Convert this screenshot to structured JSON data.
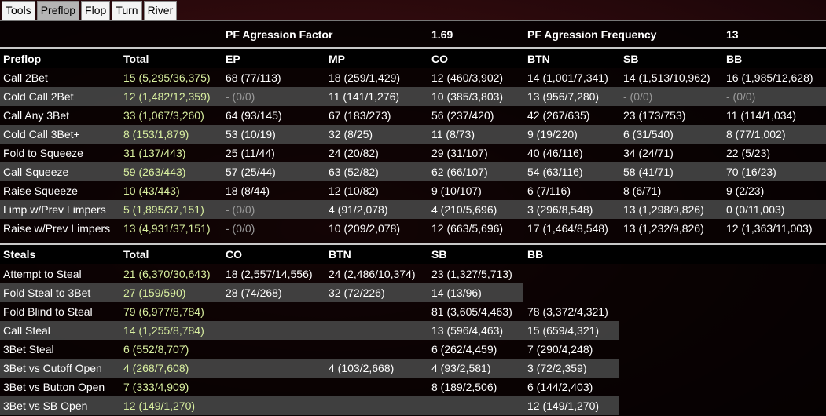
{
  "tabs": [
    {
      "label": "Tools",
      "active": false
    },
    {
      "label": "Preflop",
      "active": true
    },
    {
      "label": "Flop",
      "active": false
    },
    {
      "label": "Turn",
      "active": false
    },
    {
      "label": "River",
      "active": false
    }
  ],
  "summary": {
    "af_label": "PF Agression Factor",
    "af_value": "1.69",
    "afq_label": "PF Agression Frequency",
    "afq_value": "13"
  },
  "preflop": {
    "headers": [
      "Preflop",
      "Total",
      "EP",
      "MP",
      "CO",
      "BTN",
      "SB",
      "BB"
    ],
    "rows": [
      [
        "Call 2Bet",
        "15 (5,295/36,375)",
        "68 (77/113)",
        "18 (259/1,429)",
        "12 (460/3,902)",
        "14 (1,001/7,341)",
        "14 (1,513/10,962)",
        "16 (1,985/12,628)"
      ],
      [
        "Cold Call 2Bet",
        "12 (1,482/12,359)",
        "- (0/0)",
        "11 (141/1,276)",
        "10 (385/3,803)",
        "13 (956/7,280)",
        "- (0/0)",
        "- (0/0)"
      ],
      [
        "Call Any 3Bet",
        "33 (1,067/3,260)",
        "64 (93/145)",
        "67 (183/273)",
        "56 (237/420)",
        "42 (267/635)",
        "23 (173/753)",
        "11 (114/1,034)"
      ],
      [
        "Cold Call 3Bet+",
        "8 (153/1,879)",
        "53 (10/19)",
        "32 (8/25)",
        "11 (8/73)",
        "9 (19/220)",
        "6 (31/540)",
        "8 (77/1,002)"
      ],
      [
        "Fold to Squeeze",
        "31 (137/443)",
        "25 (11/44)",
        "24 (20/82)",
        "29 (31/107)",
        "40 (46/116)",
        "34 (24/71)",
        "22 (5/23)"
      ],
      [
        "Call Squeeze",
        "59 (263/443)",
        "57 (25/44)",
        "63 (52/82)",
        "62 (66/107)",
        "54 (63/116)",
        "58 (41/71)",
        "70 (16/23)"
      ],
      [
        "Raise Squeeze",
        "10 (43/443)",
        "18 (8/44)",
        "12 (10/82)",
        "9 (10/107)",
        "6 (7/116)",
        "8 (6/71)",
        "9 (2/23)"
      ],
      [
        "Limp w/Prev Limpers",
        "5 (1,895/37,151)",
        "- (0/0)",
        "4 (91/2,078)",
        "4 (210/5,696)",
        "3 (296/8,548)",
        "13 (1,298/9,826)",
        "0 (0/11,003)"
      ],
      [
        "Raise w/Prev Limpers",
        "13 (4,931/37,151)",
        "- (0/0)",
        "10 (209/2,078)",
        "12 (663/5,696)",
        "17 (1,464/8,548)",
        "13 (1,232/9,826)",
        "12 (1,363/11,003)"
      ]
    ]
  },
  "steals": {
    "headers": [
      "Steals",
      "Total",
      "CO",
      "BTN",
      "SB",
      "BB"
    ],
    "rows": [
      [
        "Attempt to Steal",
        "21 (6,370/30,643)",
        "18 (2,557/14,556)",
        "24 (2,486/10,374)",
        "23 (1,327/5,713)",
        ""
      ],
      [
        "Fold Steal to 3Bet",
        "27 (159/590)",
        "28 (74/268)",
        "32 (72/226)",
        "14 (13/96)",
        ""
      ],
      [
        "Fold Blind to Steal",
        "79 (6,977/8,784)",
        "",
        "",
        "81 (3,605/4,463)",
        "78 (3,372/4,321)"
      ],
      [
        "Call Steal",
        "14 (1,255/8,784)",
        "",
        "",
        "13 (596/4,463)",
        "15 (659/4,321)"
      ],
      [
        "3Bet Steal",
        "6 (552/8,707)",
        "",
        "",
        "6 (262/4,459)",
        "7 (290/4,248)"
      ],
      [
        "3Bet vs Cutoff Open",
        "4 (268/7,608)",
        "",
        "4 (103/2,668)",
        "4 (93/2,581)",
        "3 (72/2,359)"
      ],
      [
        "3Bet vs Button Open",
        "7 (333/4,909)",
        "",
        "",
        "8 (189/2,506)",
        "6 (144/2,403)"
      ],
      [
        "3Bet vs SB Open",
        "12 (149/1,270)",
        "",
        "",
        "",
        "12 (149/1,270)"
      ]
    ]
  }
}
